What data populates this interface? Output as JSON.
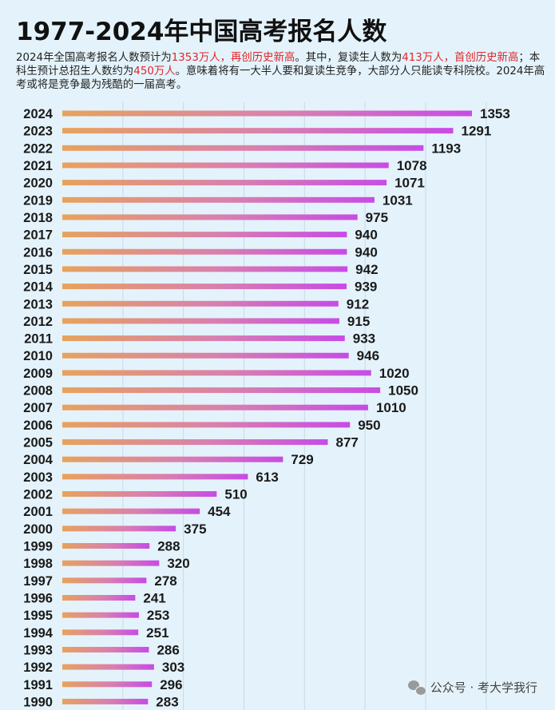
{
  "title": "1977-2024年中国高考报名人数",
  "description": {
    "p1": "2024年全国高考报名人数预计为",
    "p2": "1353万人，再创历史新高",
    "p3": "。其中，复读生人数为",
    "p4": "413万人，首创历史新高",
    "p5": "；本科生预计总招生人数约为",
    "p6": "450万人",
    "p7": "。意味着将有一大半人要和复读生竞争，大部分人只能读专科院校。2024年高考或将是竞争最为残酷的一届高考。"
  },
  "watermark": {
    "icon": "wechat-icon",
    "text": "公众号 · 考大学我行"
  },
  "colors": {
    "background": "#e4f3fb",
    "bar_start": "#e8a25c",
    "bar_end": "#c84be6",
    "highlight": "#e0262a"
  },
  "chart_data": {
    "type": "bar",
    "orientation": "horizontal",
    "title": "1977-2024年中国高考报名人数",
    "xlabel": "",
    "ylabel": "",
    "unit": "万人",
    "xlim": [
      0,
      1500
    ],
    "grid": true,
    "categories": [
      "2024",
      "2023",
      "2022",
      "2021",
      "2020",
      "2019",
      "2018",
      "2017",
      "2016",
      "2015",
      "2014",
      "2013",
      "2012",
      "2011",
      "2010",
      "2009",
      "2008",
      "2007",
      "2006",
      "2005",
      "2004",
      "2003",
      "2002",
      "2001",
      "2000",
      "1999",
      "1998",
      "1997",
      "1996",
      "1995",
      "1994",
      "1993",
      "1992",
      "1991",
      "1990"
    ],
    "values": [
      1353,
      1291,
      1193,
      1078,
      1071,
      1031,
      975,
      940,
      940,
      942,
      939,
      912,
      915,
      933,
      946,
      1020,
      1050,
      1010,
      950,
      877,
      729,
      613,
      510,
      454,
      375,
      288,
      320,
      278,
      241,
      253,
      251,
      286,
      303,
      296,
      283
    ]
  }
}
